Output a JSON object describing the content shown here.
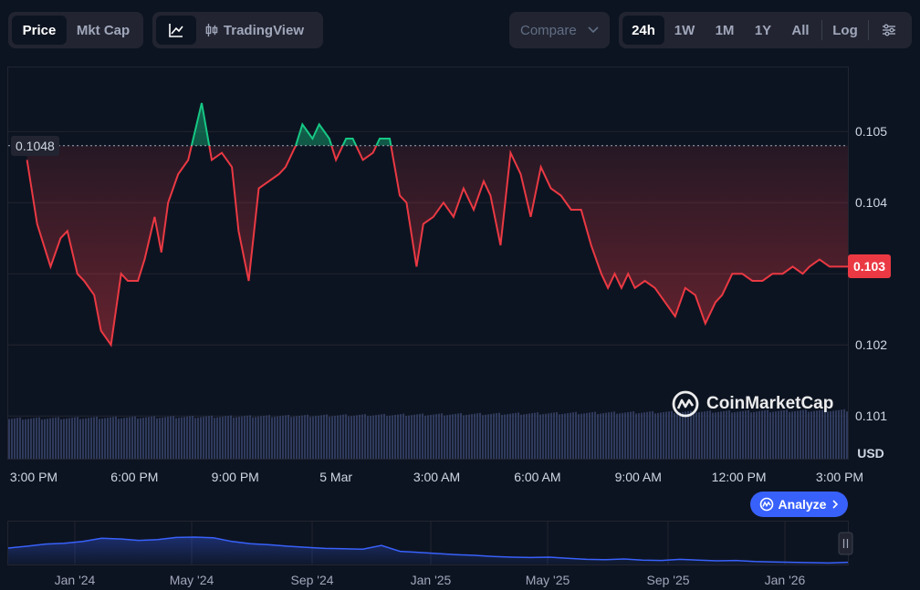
{
  "toolbar": {
    "view_tabs": [
      {
        "label": "Price",
        "active": true
      },
      {
        "label": "Mkt Cap",
        "active": false
      }
    ],
    "tradingview_label": "TradingView",
    "compare_label": "Compare",
    "ranges": [
      {
        "label": "24h",
        "active": true
      },
      {
        "label": "1W",
        "active": false
      },
      {
        "label": "1M",
        "active": false
      },
      {
        "label": "1Y",
        "active": false
      },
      {
        "label": "All",
        "active": false
      }
    ],
    "log_label": "Log"
  },
  "chart_data": {
    "type": "area",
    "reference_price": "0.1048",
    "current_price": "0.103",
    "currency_label": "USD",
    "watermark": "CoinMarketCap",
    "y_ticks": [
      "0.105",
      "0.104",
      "0.103",
      "0.102",
      "0.101"
    ],
    "ylim": [
      0.1004,
      0.1059
    ],
    "x_ticks": [
      "3:00 PM",
      "6:00 PM",
      "9:00 PM",
      "5 Mar",
      "3:00 AM",
      "6:00 AM",
      "9:00 AM",
      "12:00 PM",
      "3:00 PM"
    ],
    "x_tick_hours": [
      0,
      3,
      6,
      9,
      12,
      15,
      18,
      21,
      24
    ],
    "series": [
      {
        "x_hours": [
          -0.2,
          0.1,
          0.5,
          0.8,
          1.0,
          1.3,
          1.5,
          1.8,
          2.0,
          2.3,
          2.6,
          2.8,
          3.1,
          3.3,
          3.6,
          3.8,
          4.0,
          4.3,
          4.6,
          5.0,
          5.3,
          5.6,
          5.9,
          6.1,
          6.4,
          6.7,
          7.0,
          7.3,
          7.5,
          7.8,
          8.0,
          8.3,
          8.5,
          8.8,
          9.0,
          9.3,
          9.5,
          9.8,
          10.1,
          10.3,
          10.6,
          10.9,
          11.1,
          11.4,
          11.6,
          11.9,
          12.2,
          12.5,
          12.8,
          13.1,
          13.4,
          13.6,
          13.9,
          14.2,
          14.5,
          14.8,
          15.1,
          15.4,
          15.7,
          16.0,
          16.3,
          16.6,
          16.9,
          17.1,
          17.3,
          17.5,
          17.7,
          17.9,
          18.2,
          18.5,
          18.8,
          19.1,
          19.4,
          19.7,
          20.0,
          20.3,
          20.5,
          20.8,
          21.1,
          21.4,
          21.7,
          22.0,
          22.3,
          22.6,
          22.9,
          23.1,
          23.4,
          23.7,
          24.0,
          24.3
        ],
        "values": [
          0.1046,
          0.1037,
          0.1031,
          0.1035,
          0.1036,
          0.103,
          0.1029,
          0.1027,
          0.1022,
          0.102,
          0.103,
          0.1029,
          0.1029,
          0.1032,
          0.1038,
          0.1033,
          0.104,
          0.1044,
          0.1046,
          0.1054,
          0.1046,
          0.1047,
          0.1045,
          0.1036,
          0.1029,
          0.1042,
          0.1043,
          0.1044,
          0.1045,
          0.1048,
          0.1051,
          0.1049,
          0.1051,
          0.1049,
          0.1046,
          0.1049,
          0.1049,
          0.1046,
          0.1047,
          0.1049,
          0.1049,
          0.1041,
          0.104,
          0.1031,
          0.1037,
          0.1038,
          0.104,
          0.1038,
          0.1042,
          0.1039,
          0.1043,
          0.1041,
          0.1034,
          0.1047,
          0.1044,
          0.1038,
          0.1045,
          0.1042,
          0.1041,
          0.1039,
          0.1039,
          0.1034,
          0.103,
          0.1028,
          0.103,
          0.1028,
          0.103,
          0.1028,
          0.1029,
          0.1028,
          0.1026,
          0.1024,
          0.1028,
          0.1027,
          0.1023,
          0.1026,
          0.1027,
          0.103,
          0.103,
          0.1029,
          0.1029,
          0.103,
          0.103,
          0.1031,
          0.103,
          0.1031,
          0.1032,
          0.1031,
          0.1031,
          0.1031
        ]
      }
    ],
    "volume_level": 0.75
  },
  "navigator": {
    "labels": [
      "Jan '24",
      "May '24",
      "Sep '24",
      "Jan '25",
      "May '25",
      "Sep '25",
      "Jan '26"
    ],
    "values": [
      0.45,
      0.5,
      0.56,
      0.58,
      0.63,
      0.72,
      0.7,
      0.66,
      0.68,
      0.74,
      0.75,
      0.73,
      0.63,
      0.57,
      0.54,
      0.5,
      0.47,
      0.44,
      0.43,
      0.42,
      0.52,
      0.36,
      0.33,
      0.3,
      0.27,
      0.25,
      0.22,
      0.2,
      0.19,
      0.2,
      0.17,
      0.14,
      0.13,
      0.15,
      0.12,
      0.11,
      0.14,
      0.12,
      0.1,
      0.11,
      0.08,
      0.07,
      0.06,
      0.05,
      0.04,
      0.06
    ]
  },
  "analyze_label": "Analyze",
  "colors": {
    "up": "#16c784",
    "down": "#ea3943",
    "accent": "#3861fb",
    "volume": "#2f3a5c"
  }
}
